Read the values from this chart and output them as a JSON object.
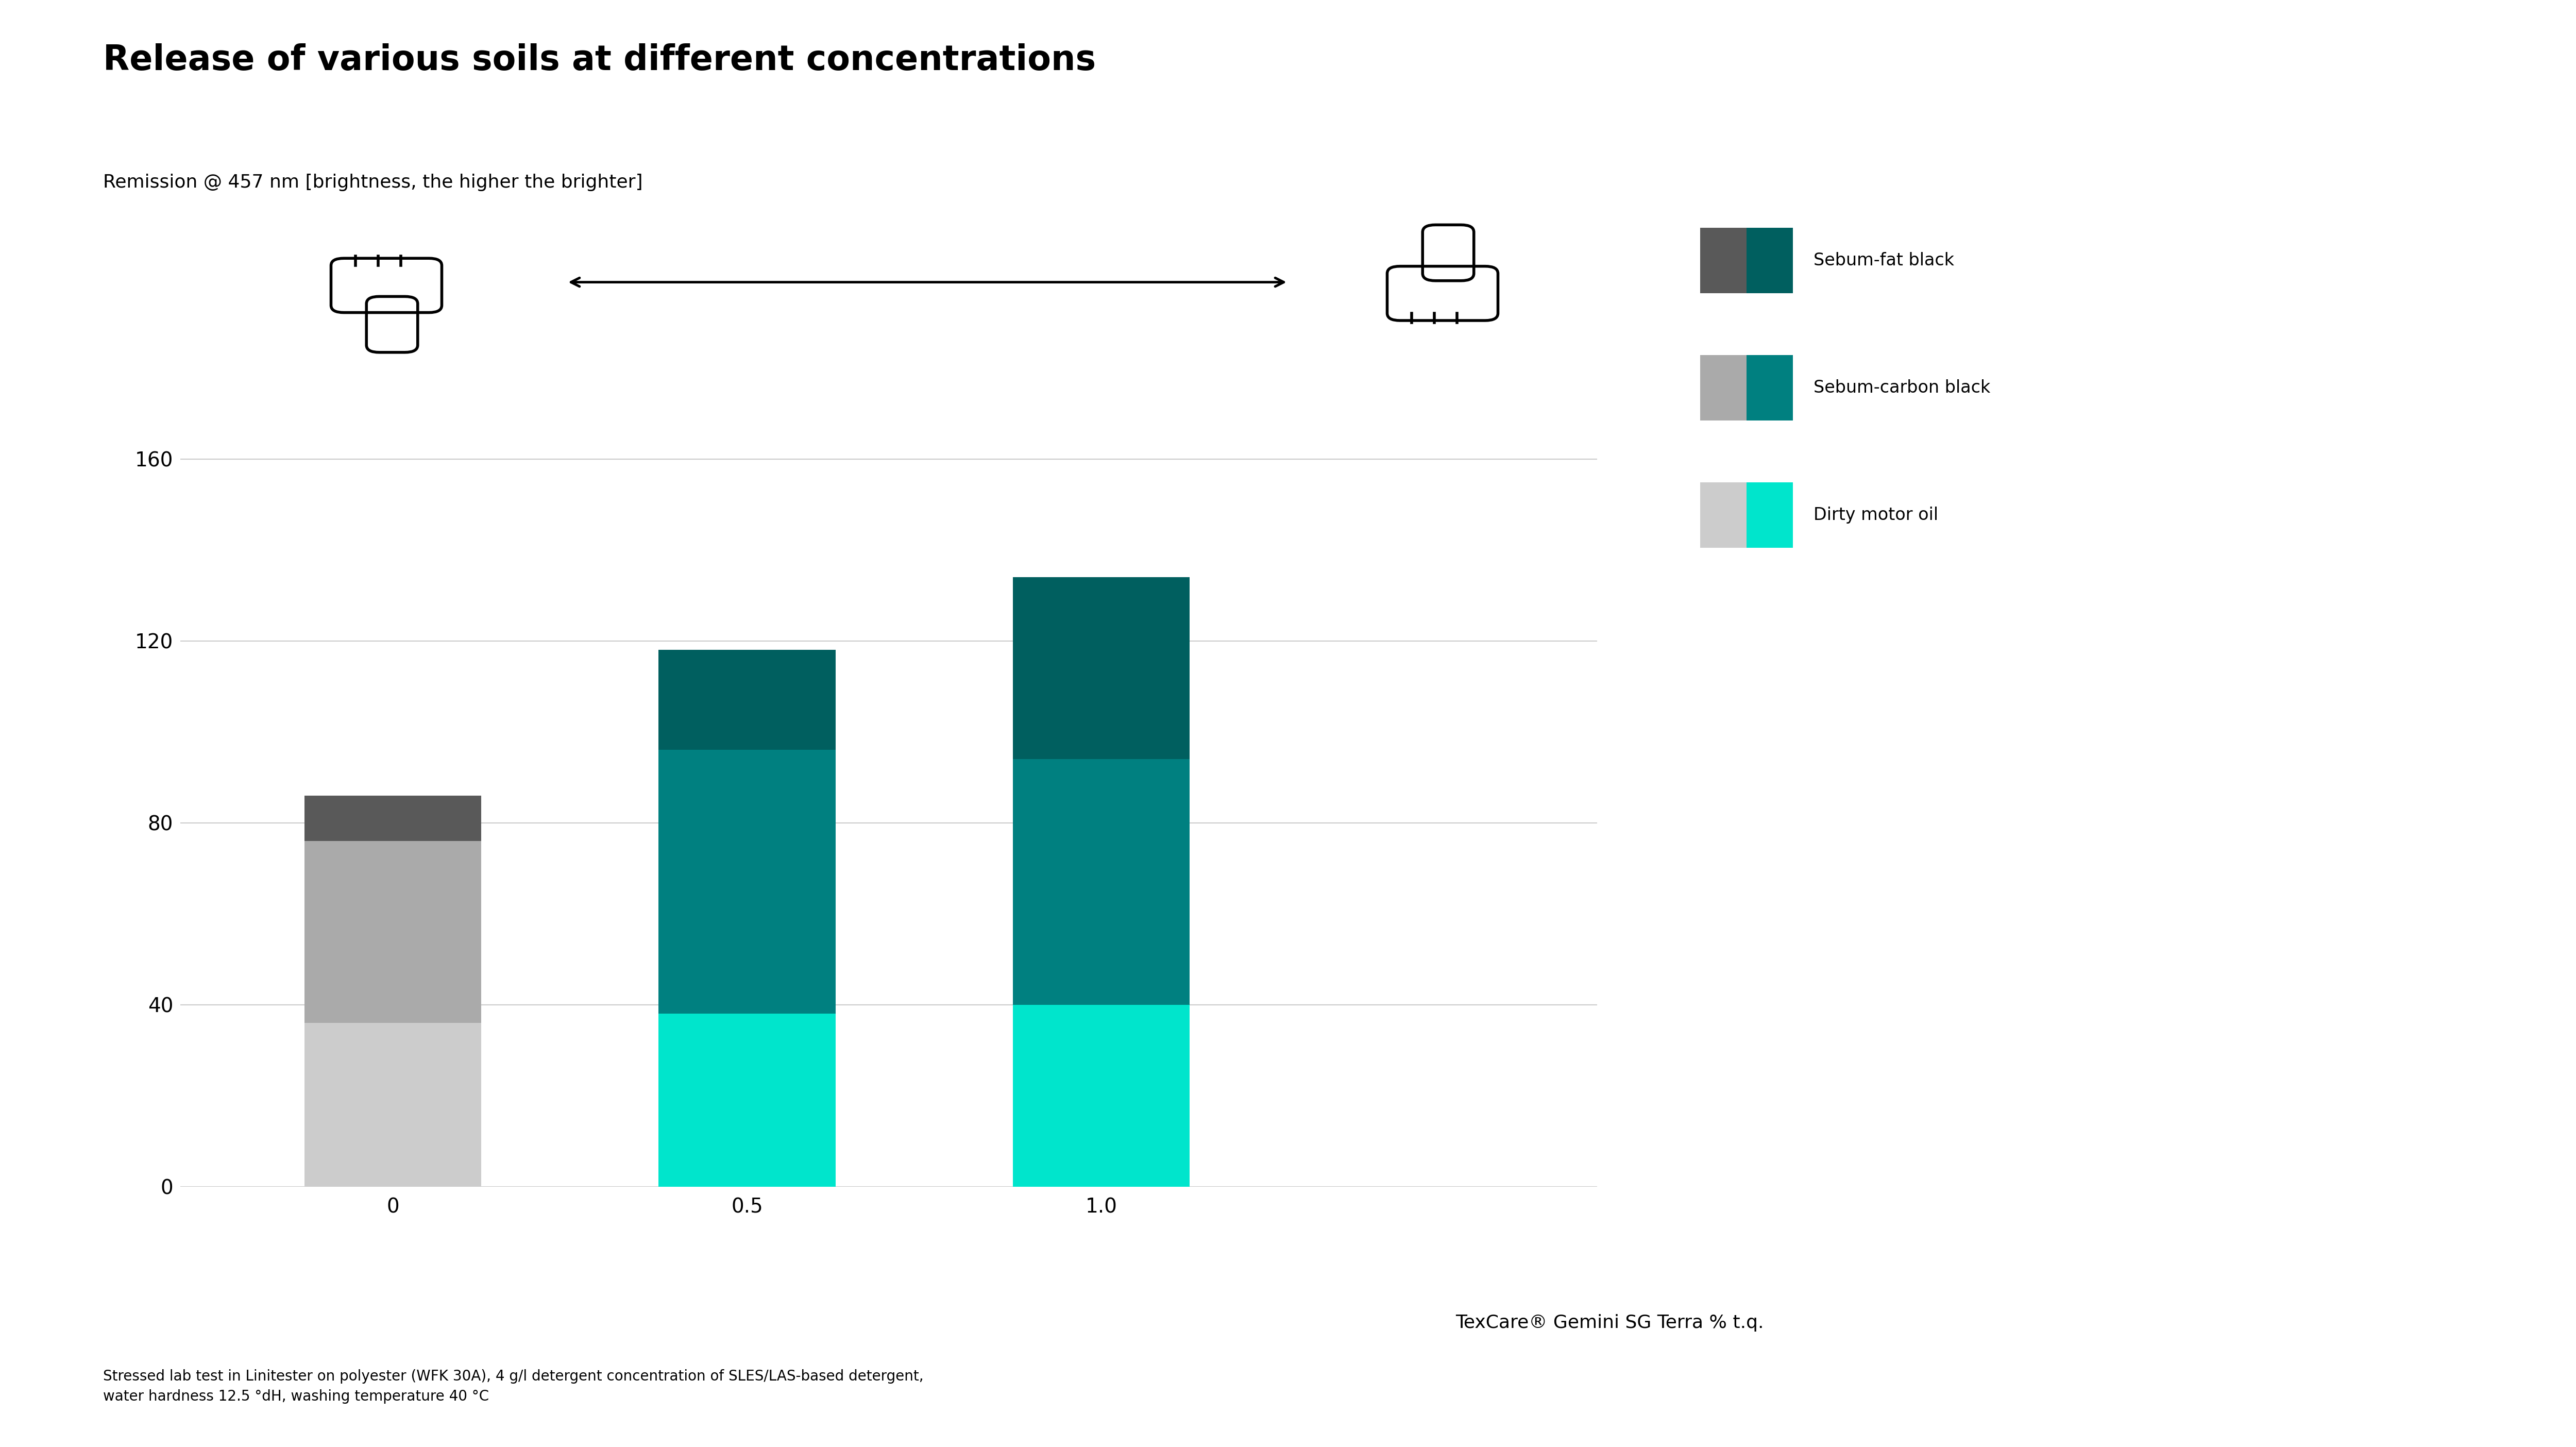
{
  "title": "Release of various soils at different concentrations",
  "subtitle": "Remission @ 457 nm [brightness, the higher the brighter]",
  "footnote": "Stressed lab test in Linitester on polyester (WFK 30A), 4 g/l detergent concentration of SLES/LAS-based detergent,\nwater hardness 12.5 °dH, washing temperature 40 °C",
  "xlabel": "TexCare® Gemini SG Terra % t.q.",
  "categories": [
    "0",
    "0.5",
    "1.0"
  ],
  "sebum_fat_black": [
    10,
    22,
    40
  ],
  "sebum_carbon_black": [
    40,
    58,
    54
  ],
  "dirty_motor_oil": [
    36,
    38,
    40
  ],
  "colors": {
    "sebum_fat_black_dark": "#595959",
    "sebum_fat_black_light": "#005f5f",
    "sebum_carbon_black_dark": "#aaaaaa",
    "sebum_carbon_black_light": "#008080",
    "dirty_motor_oil_dark": "#cccccc",
    "dirty_motor_oil_light": "#00e5cc"
  },
  "ylim": [
    0,
    175
  ],
  "yticks": [
    0,
    40,
    80,
    120,
    160
  ],
  "background_color": "#ffffff",
  "bar_width": 0.5,
  "title_fontsize": 48,
  "subtitle_fontsize": 26,
  "tick_fontsize": 28,
  "xlabel_fontsize": 26,
  "footnote_fontsize": 20,
  "legend_fontsize": 24
}
